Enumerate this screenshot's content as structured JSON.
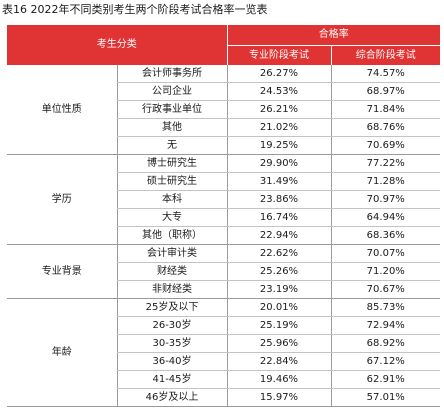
{
  "caption": "表16  2022年不同类别考生两个阶段考试合格率一览表",
  "header": {
    "category": "考生分类",
    "pass_rate": "合格率",
    "stage1": "专业阶段考试",
    "stage2": "综合阶段考试"
  },
  "groups": [
    {
      "label": "单位性质",
      "rows": [
        {
          "item": "会计师事务所",
          "stage1": "26.27%",
          "stage2": "74.57%"
        },
        {
          "item": "公司企业",
          "stage1": "24.53%",
          "stage2": "68.97%"
        },
        {
          "item": "行政事业单位",
          "stage1": "26.21%",
          "stage2": "71.84%"
        },
        {
          "item": "其他",
          "stage1": "21.02%",
          "stage2": "68.76%"
        },
        {
          "item": "无",
          "stage1": "19.25%",
          "stage2": "70.69%"
        }
      ]
    },
    {
      "label": "学历",
      "rows": [
        {
          "item": "博士研究生",
          "stage1": "29.90%",
          "stage2": "77.22%"
        },
        {
          "item": "硕士研究生",
          "stage1": "31.49%",
          "stage2": "71.28%"
        },
        {
          "item": "本科",
          "stage1": "23.86%",
          "stage2": "70.97%"
        },
        {
          "item": "大专",
          "stage1": "16.74%",
          "stage2": "64.94%"
        },
        {
          "item": "其他（职称）",
          "stage1": "22.94%",
          "stage2": "68.36%"
        }
      ]
    },
    {
      "label": "专业背景",
      "rows": [
        {
          "item": "会计审计类",
          "stage1": "22.62%",
          "stage2": "70.07%"
        },
        {
          "item": "财经类",
          "stage1": "25.26%",
          "stage2": "71.20%"
        },
        {
          "item": "非财经类",
          "stage1": "23.19%",
          "stage2": "70.67%"
        }
      ]
    },
    {
      "label": "年龄",
      "rows": [
        {
          "item": "25岁及以下",
          "stage1": "20.01%",
          "stage2": "85.73%"
        },
        {
          "item": "26-30岁",
          "stage1": "25.19%",
          "stage2": "72.94%"
        },
        {
          "item": "30-35岁",
          "stage1": "25.96%",
          "stage2": "68.92%"
        },
        {
          "item": "36-40岁",
          "stage1": "22.84%",
          "stage2": "67.12%"
        },
        {
          "item": "41-45岁",
          "stage1": "19.46%",
          "stage2": "62.91%"
        },
        {
          "item": "46岁及以上",
          "stage1": "15.97%",
          "stage2": "57.01%"
        }
      ]
    }
  ],
  "colors": {
    "header_bg": "#e03333",
    "header_text": "#ffffff",
    "rule": "#9a9a9a"
  }
}
